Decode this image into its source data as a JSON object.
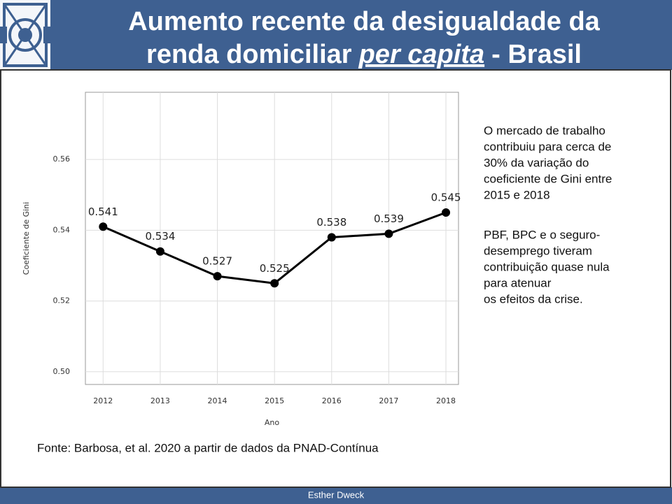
{
  "header": {
    "title_line1": "Aumento recente da desigualdade da",
    "title_line2_start": "renda domiciliar",
    "title_line2_italic": "per capita",
    "title_line2_end": "- Brasil"
  },
  "chart_data": {
    "type": "line",
    "x_label": "Ano",
    "y_label": "Coeficiente de Gini",
    "x": [
      2012,
      2013,
      2014,
      2015,
      2016,
      2017,
      2018
    ],
    "series": [
      {
        "name": "Gini",
        "color": "#000000",
        "values": [
          0.541,
          0.534,
          0.527,
          0.525,
          0.538,
          0.539,
          0.545
        ]
      }
    ],
    "xlim": [
      2011.69,
      2018.22
    ],
    "xticks": [
      2012,
      2013,
      2014,
      2015,
      2016,
      2017,
      2018
    ],
    "ylim": [
      0.4964,
      0.579
    ],
    "yticks": [
      {
        "value": 0.5,
        "label": "0.50"
      },
      0.52,
      0.54,
      0.56
    ],
    "grid": true
  },
  "side_text": {
    "paragraph1": [
      "O mercado de trabalho",
      "contribuiu para cerca de",
      "30% da variação do",
      "coeficiente de Gini entre",
      "2015 e 2018"
    ],
    "paragraph2": [
      "PBF, BPC e o seguro-",
      "desemprego tiveram",
      "contribuição quase nula",
      "para atenuar",
      "os efeitos da crise."
    ]
  },
  "source": "Fonte: Barbosa, et al. 2020 a partir de dados da PNAD-Contínua",
  "footer": "Esther Dweck"
}
